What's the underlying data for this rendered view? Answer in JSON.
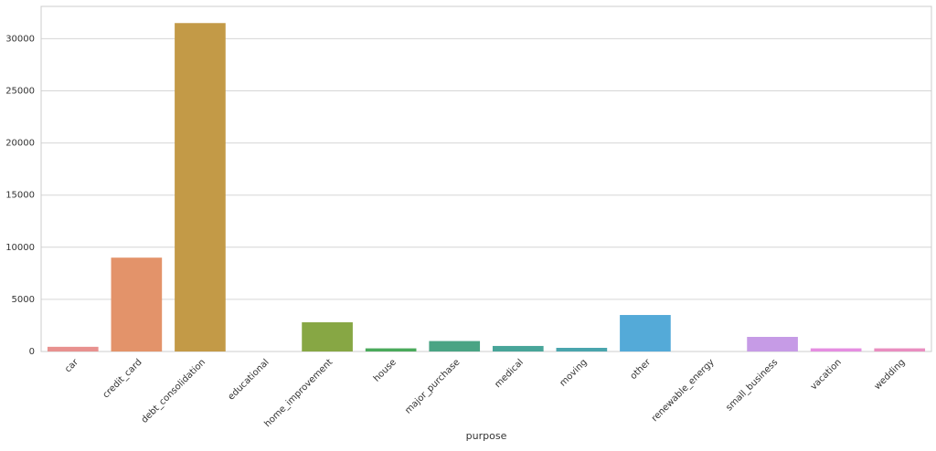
{
  "chart_data": {
    "type": "bar",
    "x_label": "purpose",
    "categories": [
      "car",
      "credit_card",
      "debt_consolidation",
      "educational",
      "home_improvement",
      "house",
      "major_purchase",
      "medical",
      "moving",
      "other",
      "renewable_energy",
      "small_business",
      "vacation",
      "wedding"
    ],
    "values": [
      450,
      9000,
      31500,
      0,
      2800,
      300,
      1000,
      530,
      350,
      3500,
      0,
      1400,
      300,
      300
    ],
    "colors": [
      "#e8918f",
      "#e3936a",
      "#c39a47",
      "#a5a040",
      "#87a744",
      "#4aaa5c",
      "#4aa484",
      "#48a599",
      "#4aa5ad",
      "#54aad8",
      "#a0a7e5",
      "#c69be6",
      "#e58ee1",
      "#e98ec0"
    ],
    "ylim": [
      0,
      33100
    ],
    "yticks": [
      0,
      5000,
      10000,
      15000,
      20000,
      25000,
      30000
    ],
    "grid": true
  }
}
